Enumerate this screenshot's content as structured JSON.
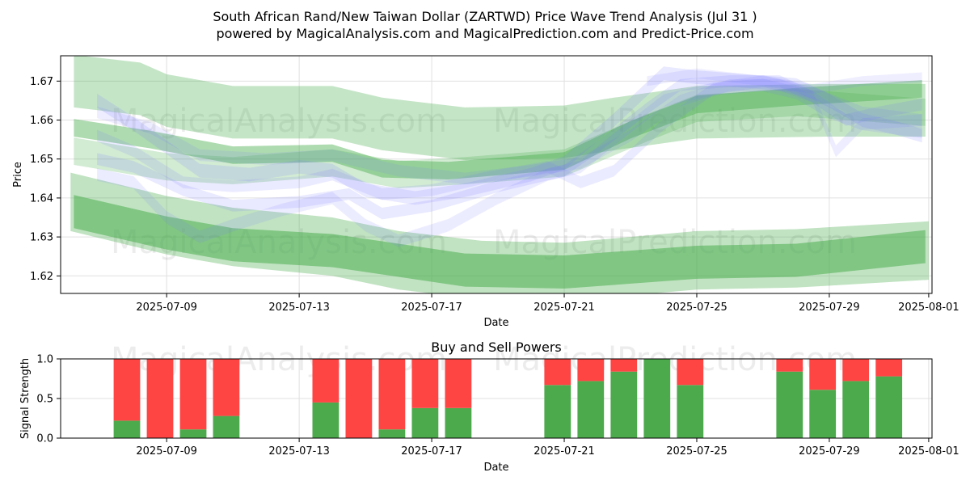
{
  "chart_data": [
    {
      "type": "area",
      "title": "South African Rand/New Taiwan Dollar (ZARTWD) Price Wave Trend Analysis (Jul 31 )",
      "subtitle": "powered by MagicalAnalysis.com and MagicalPrediction.com and Predict-Price.com",
      "xlabel": "Date",
      "ylabel": "Price",
      "x_ticks": [
        "2025-07-09",
        "2025-07-13",
        "2025-07-17",
        "2025-07-21",
        "2025-07-25",
        "2025-07-29",
        "2025-08-01"
      ],
      "x_tick_days": [
        9,
        13,
        17,
        21,
        25,
        29,
        32
      ],
      "xlim_days": [
        5.8,
        32.1
      ],
      "y_ticks": [
        "1.62",
        "1.63",
        "1.64",
        "1.65",
        "1.66",
        "1.67"
      ],
      "y_tick_values": [
        1.62,
        1.63,
        1.64,
        1.65,
        1.66,
        1.67
      ],
      "ylim": [
        1.6155,
        1.6765
      ],
      "grid": true,
      "watermarks": [
        "MagicalAnalysis.com",
        "MagicalPrediction.com",
        "MagicalAnalysis.com",
        "MagicalPrediction.com"
      ],
      "green_bands": [
        {
          "name": "upper-wide",
          "x": [
            6.2,
            8.2,
            9.0,
            11.0,
            14.0,
            15.5,
            18.0,
            21.0,
            22.5,
            25.0,
            29.0,
            31.9
          ],
          "center": [
            1.67,
            1.668,
            1.665,
            1.662,
            1.662,
            1.659,
            1.6565,
            1.657,
            1.659,
            1.662,
            1.6625,
            1.6625
          ],
          "width": 0.0135,
          "alpha": 0.32
        },
        {
          "name": "upper-dark",
          "x": [
            6.2,
            8.5,
            11.0,
            14.0,
            15.5,
            17.5,
            21.0,
            23.0,
            25.0,
            28.0,
            31.8
          ],
          "center": [
            1.658,
            1.655,
            1.651,
            1.6515,
            1.6475,
            1.647,
            1.6495,
            1.6575,
            1.664,
            1.666,
            1.668
          ],
          "width": 0.0045,
          "alpha": 0.45
        },
        {
          "name": "upper-mid",
          "x": [
            6.2,
            9.0,
            11.0,
            14.0,
            16.0,
            18.0,
            21.0,
            23.5,
            25.0,
            28.0,
            31.9
          ],
          "center": [
            1.652,
            1.648,
            1.647,
            1.649,
            1.646,
            1.647,
            1.649,
            1.658,
            1.663,
            1.6645,
            1.662
          ],
          "width": 0.007,
          "alpha": 0.25
        },
        {
          "name": "lower-wide",
          "x": [
            6.1,
            9.0,
            11.0,
            14.0,
            16.0,
            18.5,
            21.0,
            25.0,
            28.0,
            32.0
          ],
          "center": [
            1.639,
            1.633,
            1.63,
            1.6275,
            1.624,
            1.6215,
            1.621,
            1.624,
            1.6245,
            1.6265
          ],
          "width": 0.015,
          "alpha": 0.35
        },
        {
          "name": "lower-dark",
          "x": [
            6.2,
            9.0,
            11.0,
            14.0,
            16.0,
            18.0,
            21.0,
            25.0,
            28.0,
            31.9
          ],
          "center": [
            1.6365,
            1.631,
            1.628,
            1.6265,
            1.624,
            1.6215,
            1.621,
            1.6235,
            1.624,
            1.6275
          ],
          "width": 0.0085,
          "alpha": 0.55
        }
      ],
      "blue_bands": [
        {
          "name": "blue-1",
          "x": [
            6.9,
            8.0,
            9.0,
            10.0,
            11.5,
            13.0,
            14.0,
            15.0,
            16.5,
            18.0,
            20.0,
            21.0,
            22.5,
            24.0,
            25.0,
            26.5,
            28.0,
            29.0,
            30.0,
            31.0,
            31.8
          ],
          "center": [
            1.665,
            1.659,
            1.653,
            1.647,
            1.646,
            1.648,
            1.647,
            1.642,
            1.64,
            1.642,
            1.646,
            1.649,
            1.66,
            1.672,
            1.671,
            1.67,
            1.669,
            1.665,
            1.66,
            1.658,
            1.656
          ],
          "width": 0.0035,
          "alpha": 0.16
        },
        {
          "name": "blue-2",
          "x": [
            6.9,
            8.0,
            9.5,
            11.0,
            13.0,
            14.5,
            15.5,
            17.0,
            19.0,
            21.0,
            22.0,
            23.5,
            24.5,
            26.0,
            27.5,
            28.5,
            29.5,
            30.5,
            31.8
          ],
          "center": [
            1.65,
            1.648,
            1.642,
            1.638,
            1.639,
            1.641,
            1.636,
            1.638,
            1.643,
            1.647,
            1.653,
            1.663,
            1.669,
            1.67,
            1.67,
            1.666,
            1.66,
            1.662,
            1.664
          ],
          "width": 0.003,
          "alpha": 0.16
        },
        {
          "name": "blue-3",
          "x": [
            6.9,
            8.0,
            9.0,
            10.0,
            11.0,
            12.5,
            14.0,
            15.0,
            16.0,
            17.5,
            19.0,
            20.5,
            21.5,
            22.5,
            24.0,
            25.5,
            27.0,
            28.0,
            29.0,
            30.0,
            31.8
          ],
          "center": [
            1.646,
            1.644,
            1.635,
            1.63,
            1.633,
            1.637,
            1.64,
            1.633,
            1.629,
            1.633,
            1.64,
            1.646,
            1.648,
            1.655,
            1.665,
            1.668,
            1.669,
            1.667,
            1.662,
            1.659,
            1.657
          ],
          "width": 0.0032,
          "alpha": 0.14
        },
        {
          "name": "blue-4",
          "x": [
            6.9,
            8.5,
            10.0,
            12.0,
            14.0,
            16.0,
            18.0,
            20.0,
            21.5,
            23.0,
            24.5,
            26.0,
            27.5,
            28.5,
            29.2,
            30.0,
            31.8
          ],
          "center": [
            1.662,
            1.658,
            1.651,
            1.65,
            1.651,
            1.647,
            1.645,
            1.647,
            1.649,
            1.656,
            1.665,
            1.669,
            1.669,
            1.666,
            1.652,
            1.659,
            1.66
          ],
          "width": 0.003,
          "alpha": 0.13
        },
        {
          "name": "blue-5",
          "x": [
            6.9,
            8.0,
            9.5,
            11.0,
            13.0,
            14.0,
            15.5,
            17.0,
            18.5,
            20.5,
            21.5,
            22.5,
            24.0,
            25.5,
            27.0,
            28.5,
            30.0,
            31.8
          ],
          "center": [
            1.656,
            1.652,
            1.644,
            1.643,
            1.644,
            1.646,
            1.641,
            1.642,
            1.645,
            1.648,
            1.644,
            1.647,
            1.659,
            1.668,
            1.67,
            1.667,
            1.662,
            1.66
          ],
          "width": 0.003,
          "alpha": 0.15
        },
        {
          "name": "blue-6",
          "x": [
            23.5,
            25.0,
            27.0,
            28.5,
            30.0,
            31.8
          ],
          "center": [
            1.67,
            1.672,
            1.67,
            1.668,
            1.67,
            1.671
          ],
          "width": 0.0025,
          "alpha": 0.12
        }
      ]
    },
    {
      "type": "bar",
      "title": "Buy and Sell Powers",
      "xlabel": "Date",
      "ylabel": "Signal Strength",
      "x_ticks": [
        "2025-07-09",
        "2025-07-13",
        "2025-07-17",
        "2025-07-21",
        "2025-07-25",
        "2025-07-29",
        "2025-08-01"
      ],
      "x_tick_days": [
        9,
        13,
        17,
        21,
        25,
        29,
        32
      ],
      "xlim_days": [
        5.8,
        32.1
      ],
      "y_ticks": [
        "0.0",
        "0.5",
        "1.0"
      ],
      "y_tick_values": [
        0.0,
        0.5,
        1.0
      ],
      "ylim": [
        0,
        1
      ],
      "grid": true,
      "series": [
        {
          "name": "Buy",
          "color": "#4caa4c",
          "values": [
            0.22,
            0.0,
            0.11,
            0.28,
            0.45,
            0.0,
            0.11,
            0.38,
            0.38,
            0.67,
            0.72,
            0.84,
            1.0,
            0.67,
            0.84,
            0.61,
            0.72,
            0.78
          ]
        },
        {
          "name": "Sell",
          "color": "#ff4444",
          "values": [
            0.78,
            1.0,
            0.89,
            0.72,
            0.55,
            1.0,
            0.89,
            0.62,
            0.62,
            0.33,
            0.28,
            0.16,
            0.0,
            0.33,
            0.16,
            0.39,
            0.28,
            0.22
          ]
        }
      ],
      "bar_days": [
        7.8,
        8.8,
        9.8,
        10.8,
        13.8,
        14.8,
        15.8,
        16.8,
        17.8,
        20.8,
        21.8,
        22.8,
        23.8,
        24.8,
        27.8,
        28.8,
        29.8,
        30.8
      ]
    }
  ],
  "colors": {
    "green": "#4caf50",
    "blue": "#7777ff",
    "buy": "#4caa4c",
    "sell": "#ff4444",
    "grid": "#e0e0e0"
  }
}
